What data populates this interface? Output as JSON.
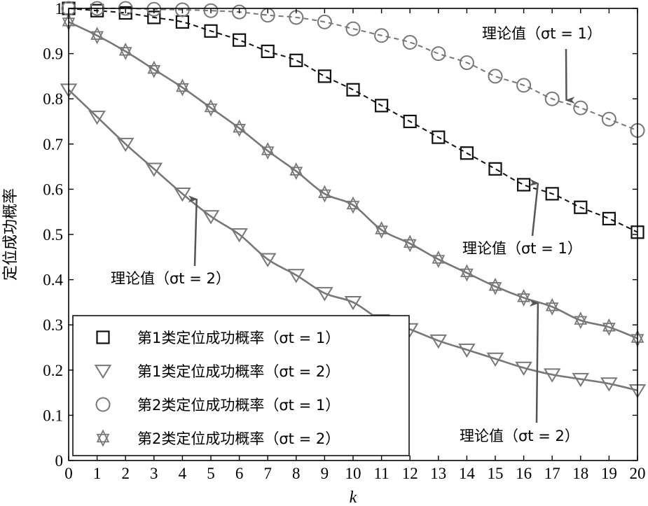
{
  "chart_data": {
    "type": "line",
    "title": "",
    "xlabel": "k",
    "ylabel": "定位成功概率",
    "xlim": [
      0,
      20
    ],
    "ylim": [
      0,
      1
    ],
    "x_ticks": [
      "0",
      "1",
      "2",
      "3",
      "4",
      "5",
      "6",
      "7",
      "8",
      "9",
      "10",
      "11",
      "12",
      "13",
      "14",
      "15",
      "16",
      "17",
      "18",
      "19",
      "20"
    ],
    "y_ticks": [
      "0",
      "0.1",
      "0.2",
      "0.3",
      "0.4",
      "0.5",
      "0.6",
      "0.7",
      "0.8",
      "0.9",
      "1"
    ],
    "grid": false,
    "legend_position": "bottom-left",
    "x": [
      0,
      1,
      2,
      3,
      4,
      5,
      6,
      7,
      8,
      9,
      10,
      11,
      12,
      13,
      14,
      15,
      16,
      17,
      18,
      19,
      20
    ],
    "series": [
      {
        "name": "第1类定位成功概率",
        "sigma_label": "（σt = 1）",
        "marker": "square",
        "color": "#111111",
        "line_style": "dashed",
        "values": [
          1.0,
          0.995,
          0.99,
          0.98,
          0.97,
          0.95,
          0.93,
          0.905,
          0.885,
          0.85,
          0.82,
          0.785,
          0.75,
          0.715,
          0.68,
          0.645,
          0.61,
          0.59,
          0.56,
          0.535,
          0.505
        ]
      },
      {
        "name": "第1类定位成功概率",
        "sigma_label": "（σt = 2）",
        "marker": "triangle-down",
        "color": "#777777",
        "line_style": "solid",
        "values": [
          0.82,
          0.76,
          0.7,
          0.645,
          0.59,
          0.54,
          0.5,
          0.445,
          0.41,
          0.37,
          0.35,
          0.31,
          0.29,
          0.265,
          0.245,
          0.225,
          0.205,
          0.19,
          0.18,
          0.17,
          0.155
        ]
      },
      {
        "name": "第2类定位成功概率",
        "sigma_label": "（σt = 1）",
        "marker": "circle",
        "color": "#777777",
        "line_style": "dashed",
        "values": [
          1.0,
          1.0,
          1.0,
          0.998,
          0.997,
          0.995,
          0.992,
          0.985,
          0.98,
          0.97,
          0.955,
          0.94,
          0.925,
          0.9,
          0.88,
          0.85,
          0.83,
          0.8,
          0.78,
          0.755,
          0.73
        ]
      },
      {
        "name": "第2类定位成功概率",
        "sigma_label": "（σt = 2）",
        "marker": "star",
        "color": "#777777",
        "line_style": "solid",
        "values": [
          0.97,
          0.94,
          0.905,
          0.865,
          0.825,
          0.78,
          0.735,
          0.685,
          0.64,
          0.59,
          0.565,
          0.51,
          0.48,
          0.445,
          0.415,
          0.385,
          0.36,
          0.34,
          0.31,
          0.295,
          0.27
        ]
      }
    ],
    "annotations": [
      {
        "text": "理论值（σt = 1）",
        "target_series": 2,
        "arrow_x": 17.5,
        "arrow_y": 0.8
      },
      {
        "text": "理论值（σt = 1）",
        "target_series": 0,
        "arrow_x": 16.5,
        "arrow_y": 0.61
      },
      {
        "text": "理论值（σt = 2）",
        "target_series": 1,
        "arrow_x": 4.5,
        "arrow_y": 0.575
      },
      {
        "text": "理论值（σt = 2）",
        "target_series": 3,
        "arrow_x": 16.5,
        "arrow_y": 0.345
      }
    ]
  }
}
